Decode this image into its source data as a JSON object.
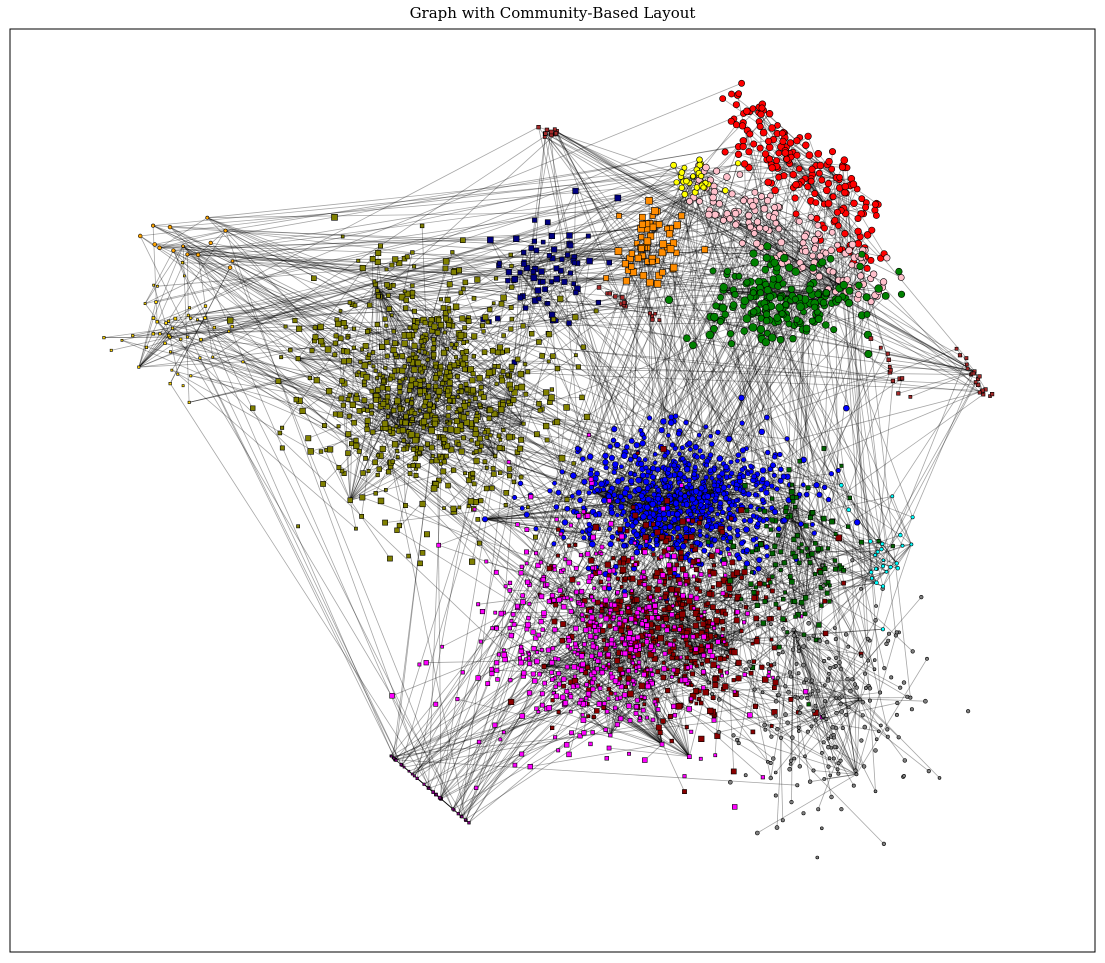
{
  "title": "Graph with Community-Based Layout",
  "communities": [
    {
      "id": "red",
      "color": "#ff0000",
      "shape": "circle",
      "count": 170
    },
    {
      "id": "pink",
      "color": "#ffc0cb",
      "shape": "circle",
      "count": 140
    },
    {
      "id": "green-upper",
      "color": "#008000",
      "shape": "circle",
      "count": 190
    },
    {
      "id": "yellow-upper",
      "color": "#ffff00",
      "shape": "circle",
      "count": 30
    },
    {
      "id": "orange",
      "color": "#ff8c00",
      "shape": "square",
      "count": 60
    },
    {
      "id": "navy",
      "color": "#000080",
      "shape": "square",
      "count": 70
    },
    {
      "id": "brown",
      "color": "#a52a2a",
      "shape": "square",
      "count": 60
    },
    {
      "id": "olive",
      "color": "#808000",
      "shape": "square",
      "count": 700
    },
    {
      "id": "gold",
      "color": "#ffd700",
      "shape": "square",
      "count": 45
    },
    {
      "id": "orange-small",
      "color": "#ffa500",
      "shape": "circle",
      "count": 14
    },
    {
      "id": "blue",
      "color": "#0000ff",
      "shape": "circle",
      "count": 700
    },
    {
      "id": "maroon",
      "color": "#8b0000",
      "shape": "square",
      "count": 450
    },
    {
      "id": "magenta",
      "color": "#ff00ff",
      "shape": "square",
      "count": 520
    },
    {
      "id": "dark-green",
      "color": "#006400",
      "shape": "square",
      "count": 120
    },
    {
      "id": "gray",
      "color": "#808080",
      "shape": "circle",
      "count": 220
    },
    {
      "id": "cyan",
      "color": "#00ffff",
      "shape": "circle",
      "count": 25
    },
    {
      "id": "purple",
      "color": "#800080",
      "shape": "square",
      "count": 35
    }
  ],
  "edge_color": "#000000"
}
